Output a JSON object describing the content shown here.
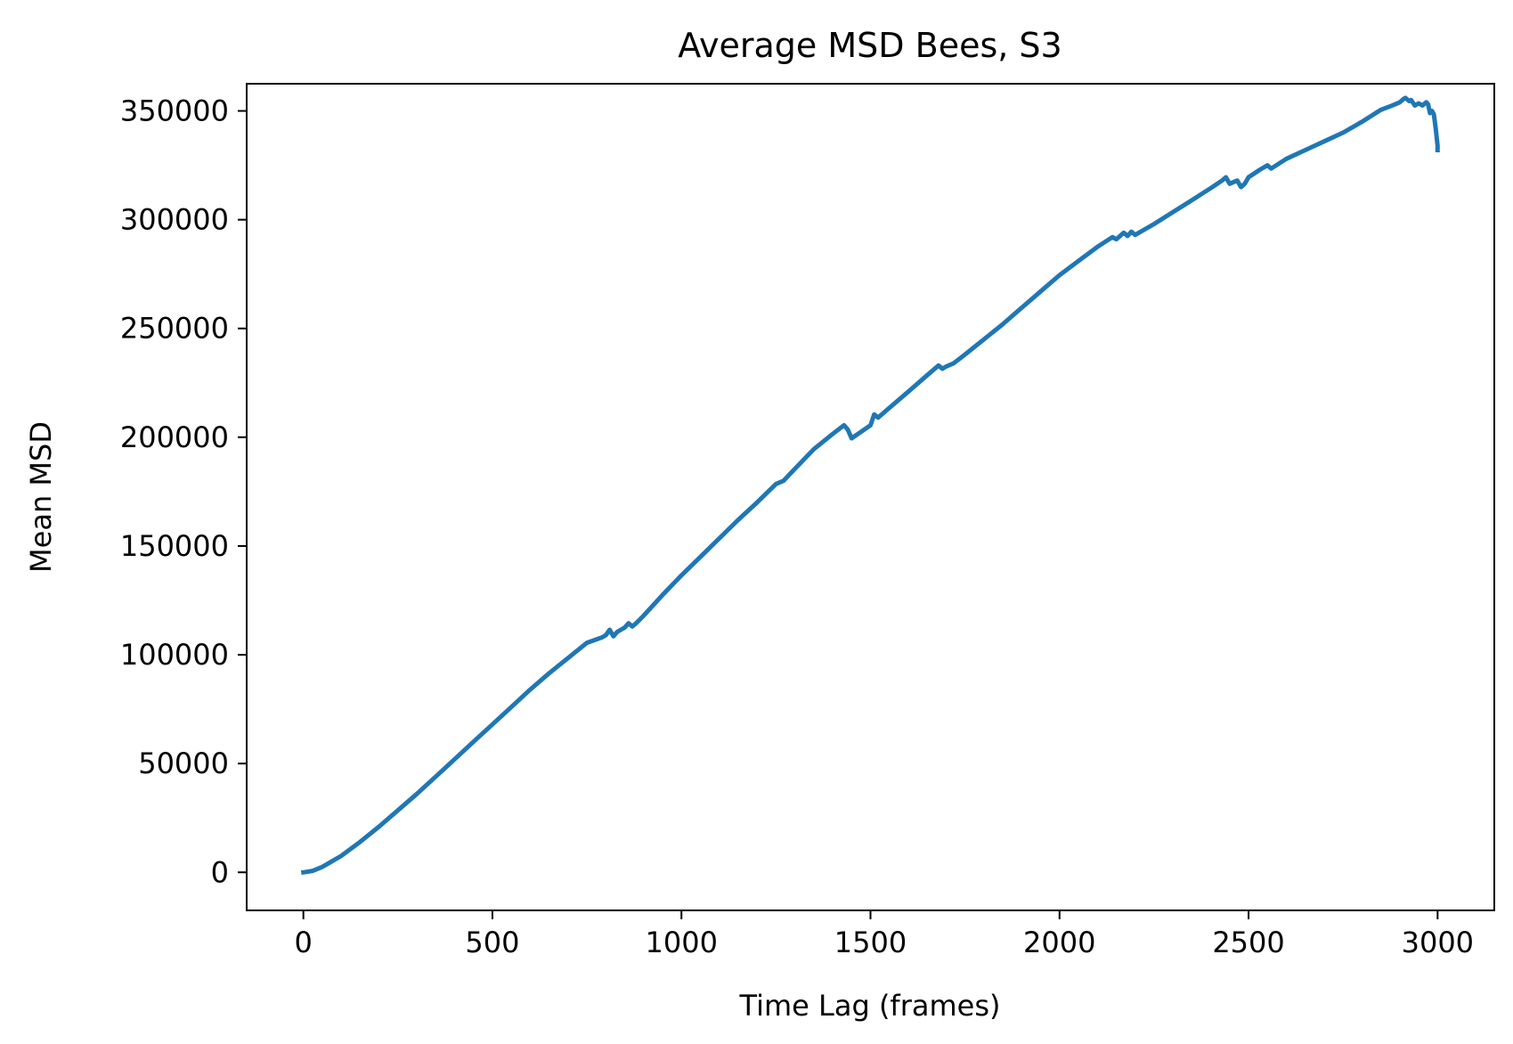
{
  "chart_data": {
    "type": "line",
    "title": "Average MSD Bees, S3",
    "xlabel": "Time Lag (frames)",
    "ylabel": "Mean MSD",
    "xlim": [
      -150,
      3150
    ],
    "ylim": [
      -17500,
      362500
    ],
    "xticks": [
      0,
      500,
      1000,
      1500,
      2000,
      2500,
      3000
    ],
    "xtick_labels": [
      "0",
      "500",
      "1000",
      "1500",
      "2000",
      "2500",
      "3000"
    ],
    "yticks": [
      0,
      50000,
      100000,
      150000,
      200000,
      250000,
      300000,
      350000
    ],
    "ytick_labels": [
      "0",
      "50000",
      "100000",
      "150000",
      "200000",
      "250000",
      "300000",
      "350000"
    ],
    "grid": false,
    "series": [
      {
        "color": "#1f77b4",
        "x": [
          0,
          25,
          50,
          100,
          150,
          200,
          250,
          300,
          350,
          400,
          450,
          500,
          550,
          600,
          650,
          700,
          750,
          790,
          800,
          810,
          820,
          830,
          850,
          860,
          870,
          880,
          900,
          950,
          1000,
          1050,
          1100,
          1150,
          1200,
          1250,
          1270,
          1300,
          1350,
          1400,
          1430,
          1440,
          1450,
          1500,
          1510,
          1520,
          1550,
          1600,
          1650,
          1680,
          1690,
          1700,
          1720,
          1750,
          1800,
          1850,
          1900,
          1950,
          2000,
          2050,
          2100,
          2140,
          2150,
          2170,
          2180,
          2190,
          2200,
          2250,
          2300,
          2350,
          2400,
          2430,
          2440,
          2450,
          2470,
          2480,
          2490,
          2500,
          2530,
          2550,
          2560,
          2600,
          2650,
          2700,
          2750,
          2800,
          2850,
          2880,
          2900,
          2910,
          2915,
          2925,
          2930,
          2940,
          2950,
          2960,
          2970,
          2975,
          2980,
          2985,
          2990,
          2995,
          3000,
          3000
        ],
        "y": [
          0,
          700,
          2500,
          7500,
          14000,
          21000,
          28500,
          36000,
          44000,
          52000,
          60000,
          68000,
          76000,
          84000,
          91500,
          98500,
          105500,
          108000,
          109000,
          111500,
          108500,
          110500,
          112500,
          114500,
          113000,
          114500,
          118000,
          127500,
          136500,
          145000,
          153500,
          162000,
          170000,
          178500,
          180000,
          185500,
          194500,
          201500,
          205500,
          203500,
          199500,
          205500,
          210500,
          209000,
          213500,
          221000,
          228500,
          233000,
          231500,
          232500,
          234000,
          238000,
          245000,
          252000,
          259500,
          267000,
          274500,
          281000,
          287500,
          292000,
          291000,
          294000,
          292500,
          294500,
          293000,
          298000,
          303500,
          309000,
          314500,
          318000,
          319500,
          316500,
          318000,
          315000,
          316500,
          319500,
          323000,
          325000,
          323500,
          328000,
          332000,
          336000,
          340000,
          345000,
          350500,
          352500,
          354000,
          355500,
          356000,
          354500,
          355000,
          352500,
          353500,
          352500,
          354000,
          353000,
          349000,
          350000,
          348500,
          342000,
          334000,
          332000
        ]
      }
    ]
  }
}
